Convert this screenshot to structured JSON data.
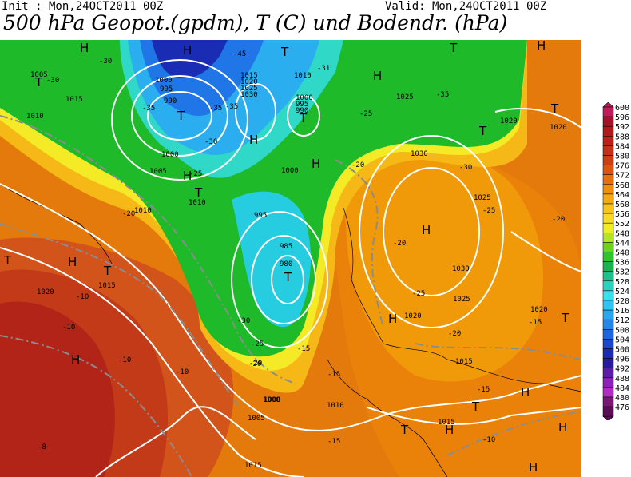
{
  "header": {
    "init": "Init : Mon,24OCT2011 00Z",
    "valid": "Valid: Mon,24OCT2011 00Z",
    "title": "500 hPa Geopot.(gpdm), T (C) und Bodendr. (hPa)"
  },
  "legend": {
    "values": [
      "600",
      "596",
      "592",
      "588",
      "584",
      "580",
      "576",
      "572",
      "568",
      "564",
      "560",
      "556",
      "552",
      "548",
      "544",
      "540",
      "536",
      "532",
      "528",
      "524",
      "520",
      "516",
      "512",
      "508",
      "504",
      "500",
      "496",
      "492",
      "488",
      "484",
      "480",
      "476"
    ],
    "colors": [
      "#c21a5a",
      "#a8102a",
      "#b21818",
      "#bc2018",
      "#c63018",
      "#d03c14",
      "#dc5410",
      "#e8700c",
      "#f0900a",
      "#f4aa10",
      "#f8c418",
      "#fada20",
      "#f0ec28",
      "#b4e61e",
      "#6cd41c",
      "#2ec42a",
      "#18b450",
      "#1cc28a",
      "#28d4c0",
      "#3ae0ec",
      "#2ec6f2",
      "#28a6f0",
      "#2286ec",
      "#1e66e0",
      "#1a48cc",
      "#1a2cb4",
      "#2a1a9c",
      "#5c1ca8",
      "#8c20b8",
      "#b02cc4",
      "#7a1678",
      "#5a0e58"
    ]
  },
  "map_labels": {
    "highs": [
      {
        "text": "H"
      },
      {
        "text": "H"
      },
      {
        "text": "H"
      },
      {
        "text": "H"
      },
      {
        "text": "H"
      },
      {
        "text": "H"
      },
      {
        "text": "H"
      },
      {
        "text": "H"
      },
      {
        "text": "H"
      },
      {
        "text": "H"
      },
      {
        "text": "H"
      },
      {
        "text": "H"
      },
      {
        "text": "H"
      },
      {
        "text": "H"
      },
      {
        "text": "H"
      }
    ],
    "lows": [
      {
        "text": "T"
      },
      {
        "text": "T"
      },
      {
        "text": "T"
      },
      {
        "text": "T"
      },
      {
        "text": "T"
      },
      {
        "text": "T"
      },
      {
        "text": "T"
      },
      {
        "text": "T"
      },
      {
        "text": "T"
      },
      {
        "text": "T"
      },
      {
        "text": "T"
      },
      {
        "text": "T"
      },
      {
        "text": "T"
      },
      {
        "text": "T"
      }
    ],
    "isobar_labels": [
      "1005",
      "1015",
      "1010",
      "1000",
      "995",
      "990",
      "1000",
      "1005",
      "1010",
      "1010",
      "1015",
      "1020",
      "1015",
      "1020",
      "1025",
      "1030",
      "1010",
      "1000",
      "995",
      "990",
      "1000",
      "1030",
      "1025",
      "1020",
      "1020",
      "1025",
      "1030",
      "1025",
      "1020",
      "1015",
      "1015",
      "1010",
      "1005",
      "1000",
      "995",
      "985",
      "980",
      "1000",
      "1020",
      "1015"
    ],
    "temp_labels": [
      "-30",
      "-30",
      "-35",
      "-45",
      "-30",
      "-35",
      "-31",
      "-25",
      "-35",
      "-30",
      "-25",
      "-20",
      "-20",
      "-25",
      "-30",
      "-20",
      "-25",
      "-25",
      "-20",
      "-20",
      "-15",
      "-15",
      "-15",
      "-10",
      "-10",
      "-10",
      "-10",
      "-15",
      "-15",
      "-10",
      "-8",
      "-20",
      "-20",
      "-35"
    ]
  }
}
